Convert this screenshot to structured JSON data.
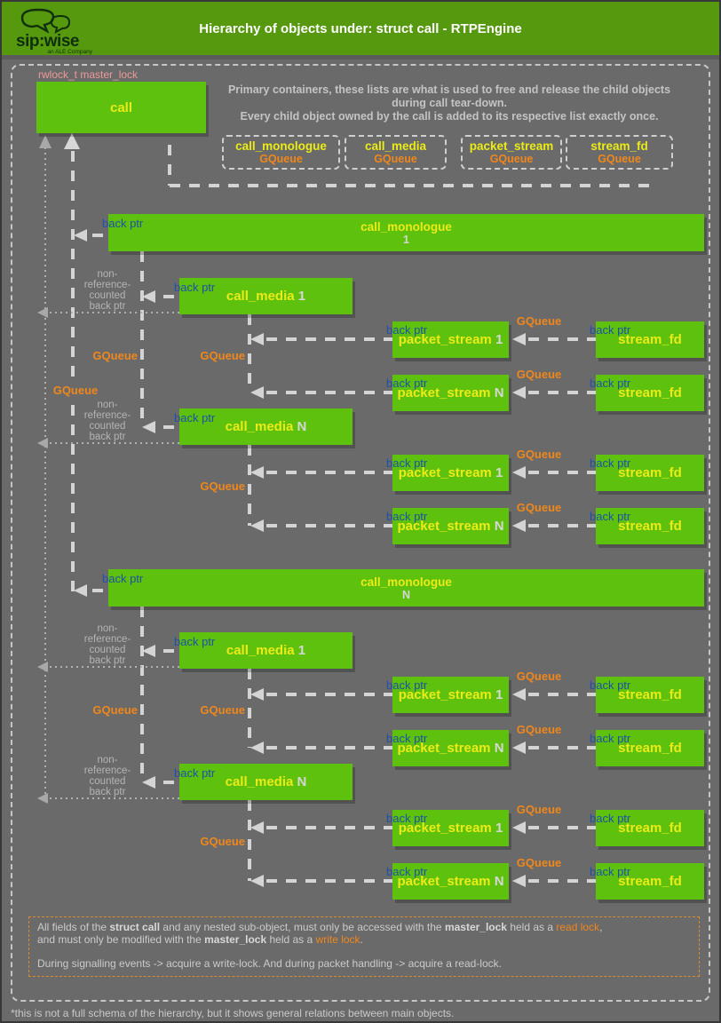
{
  "header": {
    "logo_text": "sip:wise",
    "logo_tagline": "an ALE Company",
    "title": "Hierarchy of objects under: struct call - RTPEngine"
  },
  "colors": {
    "box_green": "#5ec10d",
    "header_green": "#56990f",
    "title_yellow": "#ebeb18",
    "gqueue_orange": "#f0871c",
    "back_ptr_blue": "#1e51a5",
    "rwlock_pink": "#ee9999",
    "background_gray": "#6a6a6a"
  },
  "diagram": {
    "rwlock_label": "rwlock_t master_lock",
    "call_label": "call",
    "intro": {
      "line1": "Primary containers, these lists are what is used to free and release the child objects",
      "line2": "during call tear-down.",
      "line3": "Every child object owned by the call is added to its respective list exactly once."
    },
    "queue_boxes": [
      {
        "title": "call_monologue",
        "sub": "GQueue"
      },
      {
        "title": "call_media",
        "sub": "GQueue"
      },
      {
        "title": "packet_stream",
        "sub": "GQueue"
      },
      {
        "title": "stream_fd",
        "sub": "GQueue"
      }
    ],
    "labels": {
      "back_ptr": "back ptr",
      "gqueue": "GQueue",
      "non_ref_lines": [
        "non-",
        "reference-",
        "counted",
        "back ptr"
      ]
    },
    "monologue_title": "call_monologue",
    "media_title": "call_media",
    "stream_title": "packet_stream",
    "fd_title": "stream_fd",
    "monologues": [
      {
        "index": "1",
        "medias": [
          {
            "index": "1",
            "streams": [
              {
                "index": "1"
              },
              {
                "index": "N"
              }
            ]
          },
          {
            "index": "N",
            "streams": [
              {
                "index": "1"
              },
              {
                "index": "N"
              }
            ]
          }
        ]
      },
      {
        "index": "N",
        "medias": [
          {
            "index": "1",
            "streams": [
              {
                "index": "1"
              },
              {
                "index": "N"
              }
            ]
          },
          {
            "index": "N",
            "streams": [
              {
                "index": "1"
              },
              {
                "index": "N"
              }
            ]
          }
        ]
      }
    ]
  },
  "note": {
    "lines": [
      [
        {
          "t": "All fields of the "
        },
        {
          "t": "struct call",
          "bold": true
        },
        {
          "t": " and any nested sub-object, must only be accessed with the "
        },
        {
          "t": "master_lock",
          "bold": true
        },
        {
          "t": " held as a "
        },
        {
          "t": "read lock",
          "orange": true
        },
        {
          "t": ","
        }
      ],
      [
        {
          "t": "and must only be modified with the "
        },
        {
          "t": "master_lock",
          "bold": true
        },
        {
          "t": " held as a "
        },
        {
          "t": "write lock",
          "orange": true
        },
        {
          "t": "."
        }
      ],
      [],
      [
        {
          "t": "During signalling events -> acquire a write-lock. And during packet handling -> acquire a read-lock."
        }
      ]
    ]
  },
  "footer": {
    "caption": "*this is not a full schema of the hierarchy, but it shows general relations between main objects."
  }
}
